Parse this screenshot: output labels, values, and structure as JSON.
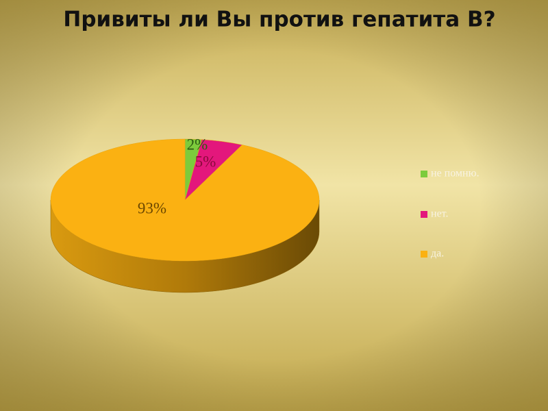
{
  "chart_data": {
    "type": "pie",
    "title": "Привиты ли  Вы против гепатита В?",
    "categories": [
      "не помню.",
      "нет.",
      "да."
    ],
    "values": [
      2,
      5,
      93
    ],
    "value_labels": [
      "2%",
      "5%",
      "93%"
    ],
    "colors": [
      "#7ccb3c",
      "#e3177c",
      "#fbb112"
    ],
    "legend": "right"
  }
}
